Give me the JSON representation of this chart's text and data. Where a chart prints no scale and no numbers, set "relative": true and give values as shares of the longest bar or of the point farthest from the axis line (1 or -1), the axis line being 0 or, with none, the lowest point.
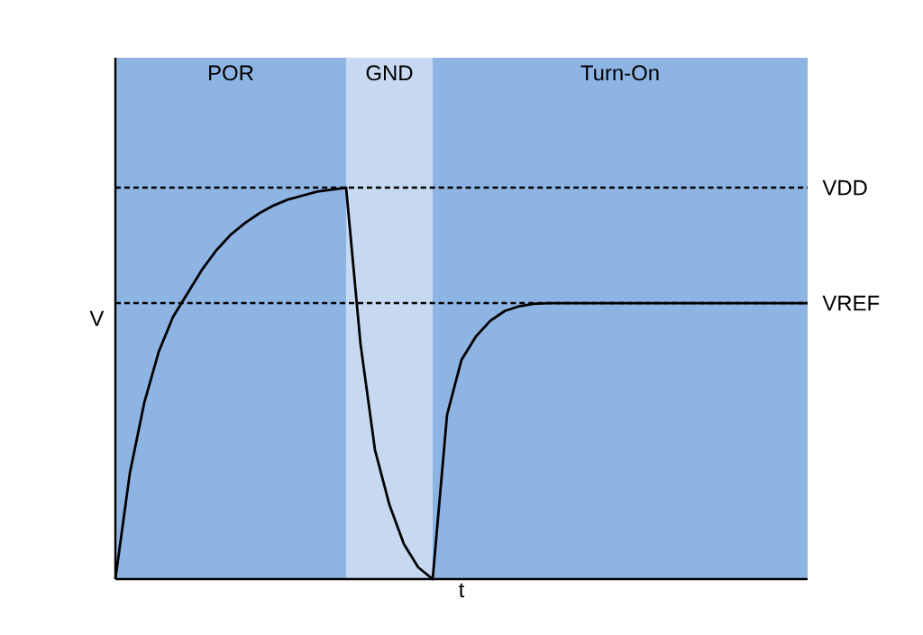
{
  "chart_data": {
    "type": "line",
    "relative": true,
    "xlabel": "t",
    "ylabel": "V",
    "tick_labels": false,
    "categories": [
      null,
      null,
      null,
      null,
      null,
      null,
      null,
      null,
      null,
      null,
      null,
      null,
      null,
      null,
      null,
      null,
      null,
      null,
      null,
      null,
      null,
      null,
      null,
      null,
      null,
      null,
      null,
      null,
      null,
      null,
      null,
      null,
      null,
      null,
      null,
      null,
      null,
      null,
      null,
      null,
      null,
      null,
      null,
      null,
      null,
      null,
      null,
      null,
      null
    ],
    "series": [
      {
        "color": "#000000",
        "values": [
          0,
          0.27,
          0.45,
          0.58,
          0.67,
          0.73,
          0.79,
          0.84,
          0.88,
          0.91,
          0.935,
          0.955,
          0.97,
          0.98,
          0.99,
          0.995,
          1.0,
          0.6,
          0.33,
          0.19,
          0.09,
          0.03,
          0,
          0.42,
          0.56,
          0.62,
          0.66,
          0.685,
          0.697,
          0.703,
          0.705,
          0.705,
          0.705,
          0.705,
          0.705,
          0.705,
          0.705,
          0.705,
          0.705,
          0.705,
          0.705,
          0.705,
          0.705,
          0.705,
          0.705,
          0.705,
          0.705,
          0.705,
          0.705
        ]
      }
    ],
    "annotations": [
      "POR",
      "GND",
      "Turn-On"
    ],
    "ref_lines": [
      {
        "axis": "y",
        "value": 1.0,
        "label": "VDD",
        "line_style": "dashed"
      },
      {
        "axis": "y",
        "value": 0.705,
        "label": "VREF",
        "line_style": "dashed"
      }
    ]
  }
}
